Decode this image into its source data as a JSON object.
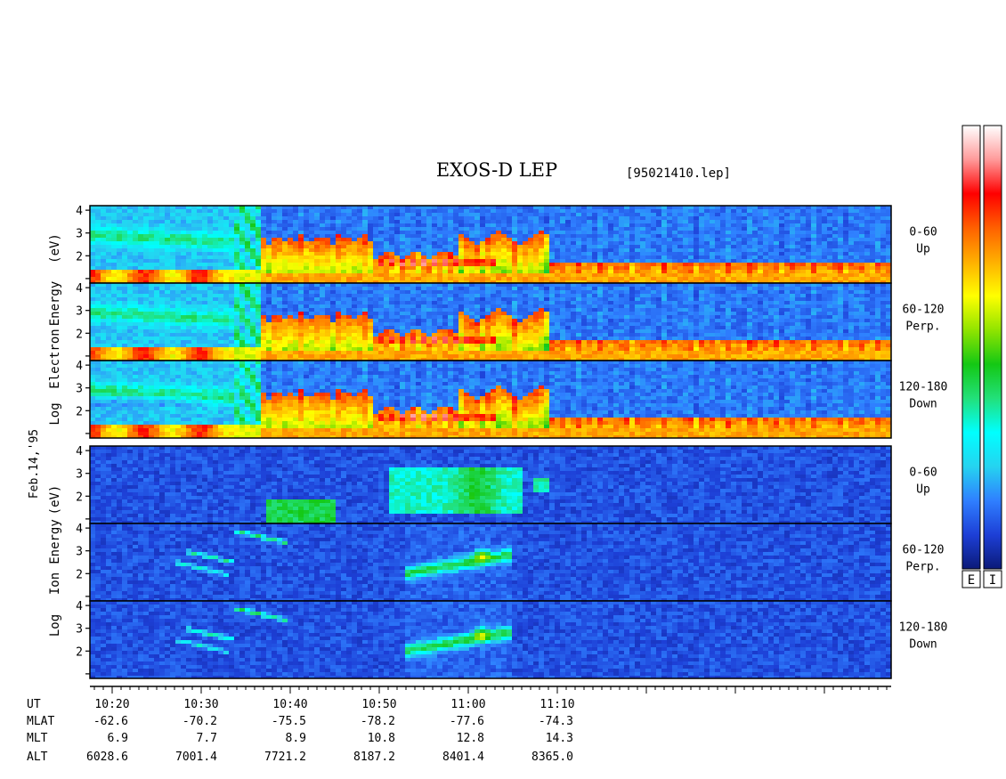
{
  "chart_data": {
    "type": "heatmap",
    "title": "EXOS-D LEP",
    "file_label": "[95021410.lep]",
    "date_label": "Feb.14,'95",
    "colorbar_labels": [
      "E",
      "I"
    ],
    "colorscale": [
      "#0b1a78",
      "#1d3fd6",
      "#2f7fff",
      "#25d3f0",
      "#00ffff",
      "#22e07a",
      "#14c814",
      "#90e400",
      "#ffff00",
      "#ffb000",
      "#ff6000",
      "#ff0000",
      "#ff9a9a",
      "#ffffff"
    ],
    "y_ticks": [
      "1",
      "2",
      "3",
      "4"
    ],
    "y_range": [
      1,
      4
    ],
    "electron_ylabel": [
      "Log",
      "Electron",
      "Energy",
      "(eV)"
    ],
    "ion_ylabel": [
      "Log",
      "Ion",
      "Energy",
      "(eV)"
    ],
    "panels": [
      {
        "species": "electron",
        "label": "0-60",
        "sublabel": "Up"
      },
      {
        "species": "electron",
        "label": "60-120",
        "sublabel": "Perp."
      },
      {
        "species": "electron",
        "label": "120-180",
        "sublabel": "Down"
      },
      {
        "species": "ion",
        "label": "0-60",
        "sublabel": "Up"
      },
      {
        "species": "ion",
        "label": "60-120",
        "sublabel": "Perp."
      },
      {
        "species": "ion",
        "label": "120-180",
        "sublabel": "Down"
      }
    ],
    "x_range_min": [
      617.5,
      707.5
    ],
    "x_row_labels": [
      "UT",
      "MLAT",
      "MLT",
      "ALT"
    ],
    "x_ticks": [
      {
        "min": 620,
        "UT": "10:20",
        "MLAT": "-62.6",
        "MLT": "6.9",
        "ALT": "6028.6"
      },
      {
        "min": 630,
        "UT": "10:30",
        "MLAT": "-70.2",
        "MLT": "7.7",
        "ALT": "7001.4"
      },
      {
        "min": 640,
        "UT": "10:40",
        "MLAT": "-75.5",
        "MLT": "8.9",
        "ALT": "7721.2"
      },
      {
        "min": 650,
        "UT": "10:50",
        "MLAT": "-78.2",
        "MLT": "10.8",
        "ALT": "8187.2"
      },
      {
        "min": 660,
        "UT": "11:00",
        "MLAT": "-77.6",
        "MLT": "12.8",
        "ALT": "8401.4"
      },
      {
        "min": 670,
        "UT": "11:10",
        "MLAT": "-74.3",
        "MLT": "14.3",
        "ALT": "8365.0"
      }
    ]
  }
}
